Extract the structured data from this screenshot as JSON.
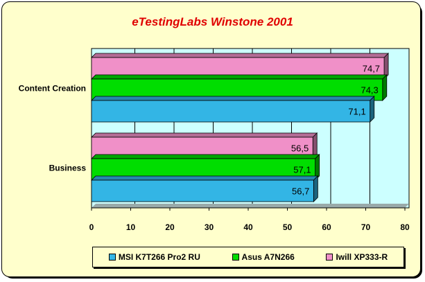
{
  "chart_data": {
    "type": "bar",
    "orientation": "horizontal",
    "title": "eTestingLabs Winstone 2001",
    "categories": [
      "Content Creation",
      "Business"
    ],
    "series": [
      {
        "name": "MSI K7T266 Pro2 RU",
        "color": "#33b5e5",
        "values": [
          71.1,
          56.7
        ],
        "labels": [
          "71,1",
          "56,7"
        ]
      },
      {
        "name": "Asus A7N266",
        "color": "#00dd00",
        "values": [
          74.3,
          57.1
        ],
        "labels": [
          "74,3",
          "57,1"
        ]
      },
      {
        "name": "Iwill XP333-R",
        "color": "#f090c8",
        "values": [
          74.7,
          56.5
        ],
        "labels": [
          "74,7",
          "56,5"
        ]
      }
    ],
    "xlim": [
      0,
      80
    ],
    "xticks": [
      "0",
      "10",
      "20",
      "30",
      "40",
      "50",
      "60",
      "70",
      "80"
    ],
    "grid": true,
    "plot_background": "#ccffff",
    "legend_position": "bottom"
  }
}
